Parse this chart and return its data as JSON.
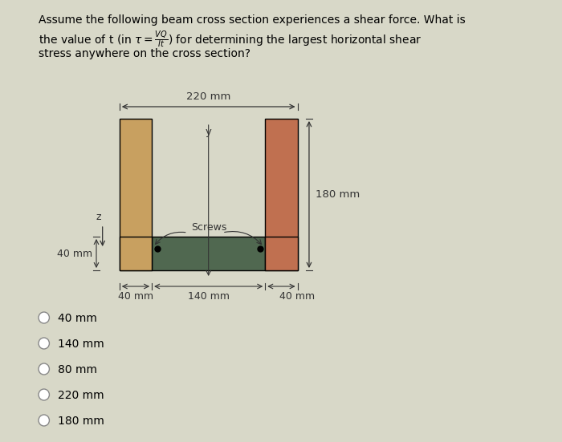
{
  "bg_color": "#d8d8c8",
  "title_text": "Assume the following beam cross section experiences a shear force. What is\nthe value of t (in τ = VQ/It) for determining the largest horizontal shear\nstress anywhere on the cross section?",
  "dim_220": "220 mm",
  "dim_180": "180 mm",
  "dim_40a": "40 mm",
  "dim_40b": "40 mm",
  "dim_140": "140 mm",
  "dim_40c": "40 mm",
  "label_screws": "Screws",
  "label_y": "y",
  "label_z": "z",
  "choices": [
    "40 mm",
    "140 mm",
    "80 mm",
    "220 mm",
    "180 mm"
  ],
  "left_flange_color": "#c8a060",
  "right_flange_color": "#c07050",
  "web_color": "#506850",
  "flange_bottom_color": "#c8a060",
  "text_color": "#000000",
  "figsize": [
    7.0,
    5.51
  ],
  "dpi": 100
}
